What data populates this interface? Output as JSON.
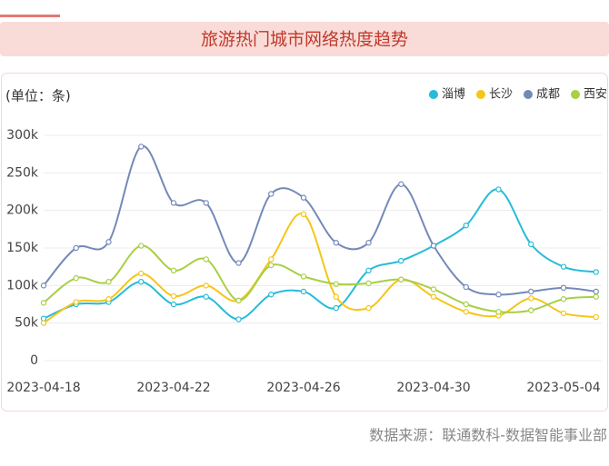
{
  "chart_data": {
    "type": "line",
    "title": "旅游热门城市网络热度趋势",
    "y_label": "(单位：条)",
    "source": "数据来源：联通数科-数据智能事业部",
    "categories": [
      "2023-04-18",
      null,
      null,
      null,
      "2023-04-22",
      null,
      null,
      null,
      "2023-04-26",
      null,
      null,
      null,
      "2023-04-30",
      null,
      null,
      null,
      "2023-05-04",
      null
    ],
    "series": [
      {
        "name": "淄博",
        "color": "#26bcd7",
        "values": [
          56000,
          75000,
          78000,
          105000,
          75000,
          85000,
          55000,
          88000,
          92000,
          70000,
          120000,
          133000,
          153000,
          180000,
          228000,
          155000,
          125000,
          118000
        ]
      },
      {
        "name": "长沙",
        "color": "#f5c518",
        "values": [
          50000,
          78000,
          82000,
          116000,
          86000,
          100000,
          80000,
          135000,
          195000,
          85000,
          70000,
          108000,
          85000,
          65000,
          60000,
          83000,
          63000,
          58000
        ]
      },
      {
        "name": "成都",
        "color": "#7589b8",
        "values": [
          100000,
          150000,
          158000,
          285000,
          210000,
          210000,
          130000,
          222000,
          217000,
          157000,
          157000,
          235000,
          153000,
          98000,
          88000,
          92000,
          97000,
          92000
        ]
      },
      {
        "name": "西安",
        "color": "#a8cf45",
        "values": [
          77000,
          110000,
          105000,
          153000,
          120000,
          135000,
          80000,
          127000,
          112000,
          102000,
          103000,
          108000,
          95000,
          75000,
          65000,
          67000,
          82000,
          85000
        ]
      }
    ],
    "ylim": [
      0,
      300000
    ],
    "yticks": [
      0,
      {
        "value": 50000,
        "label": "50k"
      },
      {
        "value": 100000,
        "label": "100k"
      },
      {
        "value": 150000,
        "label": "150k"
      },
      {
        "value": 200000,
        "label": "200k"
      },
      {
        "value": 250000,
        "label": "250k"
      },
      {
        "value": 300000,
        "label": "300k"
      }
    ],
    "grid": true,
    "legend": "top-right"
  }
}
